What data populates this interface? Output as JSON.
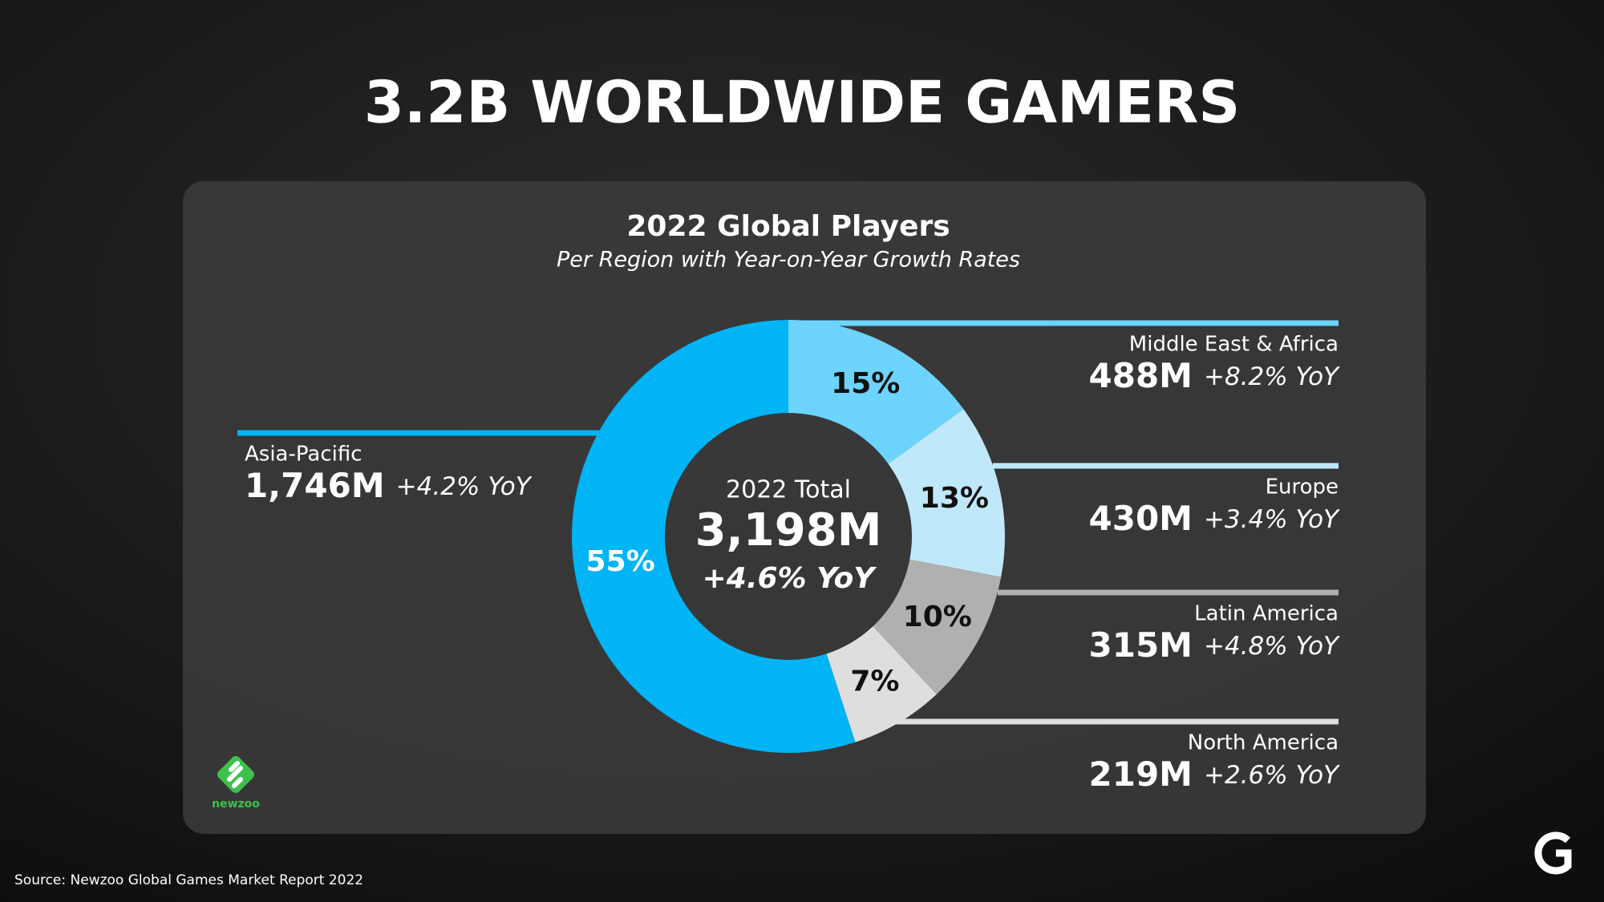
{
  "title": "3.2B WORLDWIDE GAMERS",
  "source": "Source: Newzoo Global Games Market Report 2022",
  "logo": "newzoo",
  "chart_data": {
    "type": "donut",
    "title": "2022 Global Players",
    "subtitle": "Per Region with Year-on-Year Growth Rates",
    "categories": [
      "Middle East & Africa",
      "Europe",
      "Latin America",
      "North America",
      "Asia-Pacific"
    ],
    "values": [
      15,
      13,
      10,
      7,
      55
    ],
    "value_labels": [
      "15%",
      "13%",
      "10%",
      "7%",
      "55%"
    ],
    "colors": [
      "#6dd3ff",
      "#bfe9fb",
      "#b0b0b0",
      "#dedede",
      "#00b4f5"
    ],
    "label_colors": [
      "#111111",
      "#111111",
      "#111111",
      "#111111",
      "#ffffff"
    ],
    "players": [
      "488M",
      "430M",
      "315M",
      "219M",
      "1,746M"
    ],
    "growth": [
      "+8.2% YoY",
      "+3.4% YoY",
      "+4.8% YoY",
      "+2.6% YoY",
      "+4.2% YoY"
    ],
    "center": {
      "label": "2022 Total",
      "value": "3,198M",
      "growth": "+4.6% YoY"
    }
  }
}
